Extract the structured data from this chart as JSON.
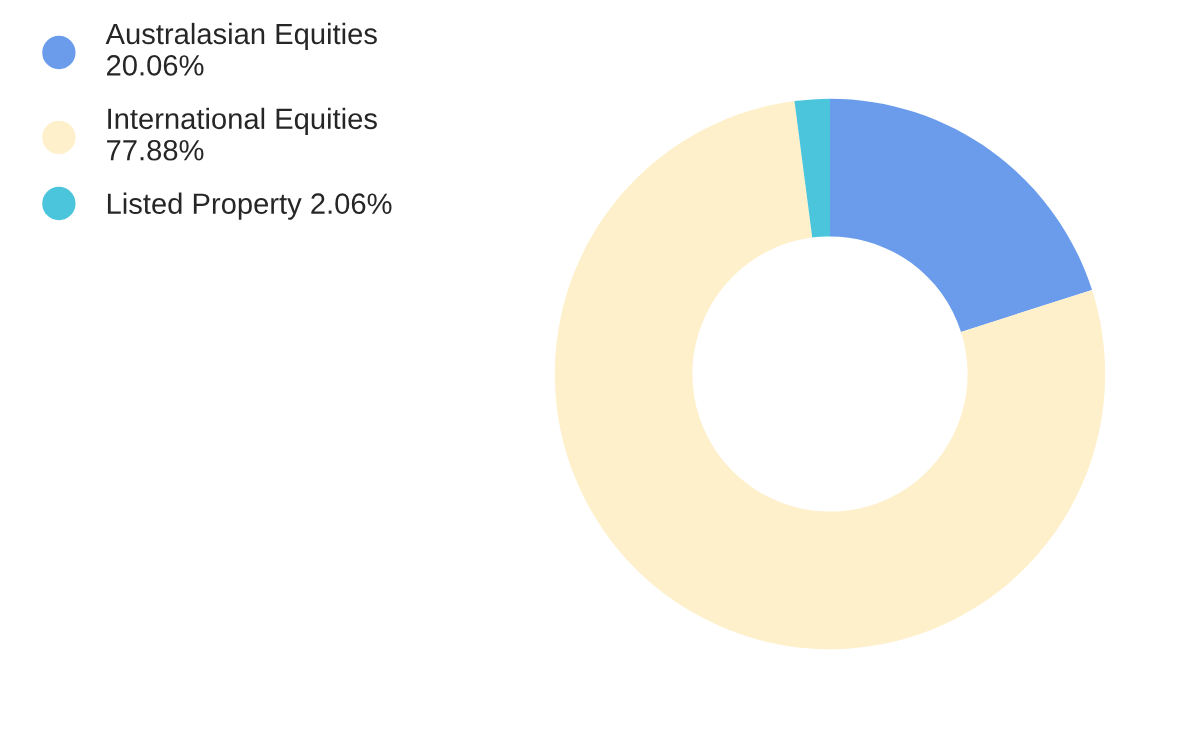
{
  "chart_data": {
    "type": "donut",
    "categories": [
      "Australasian Equities",
      "International Equities",
      "Listed Property"
    ],
    "values": [
      20.06,
      77.88,
      2.06
    ],
    "value_labels": [
      "20.06%",
      "77.88%",
      "2.06%"
    ],
    "colors": [
      "#6b9ceb",
      "#fff0cc",
      "#4bc5dc"
    ],
    "legend": "top left"
  }
}
